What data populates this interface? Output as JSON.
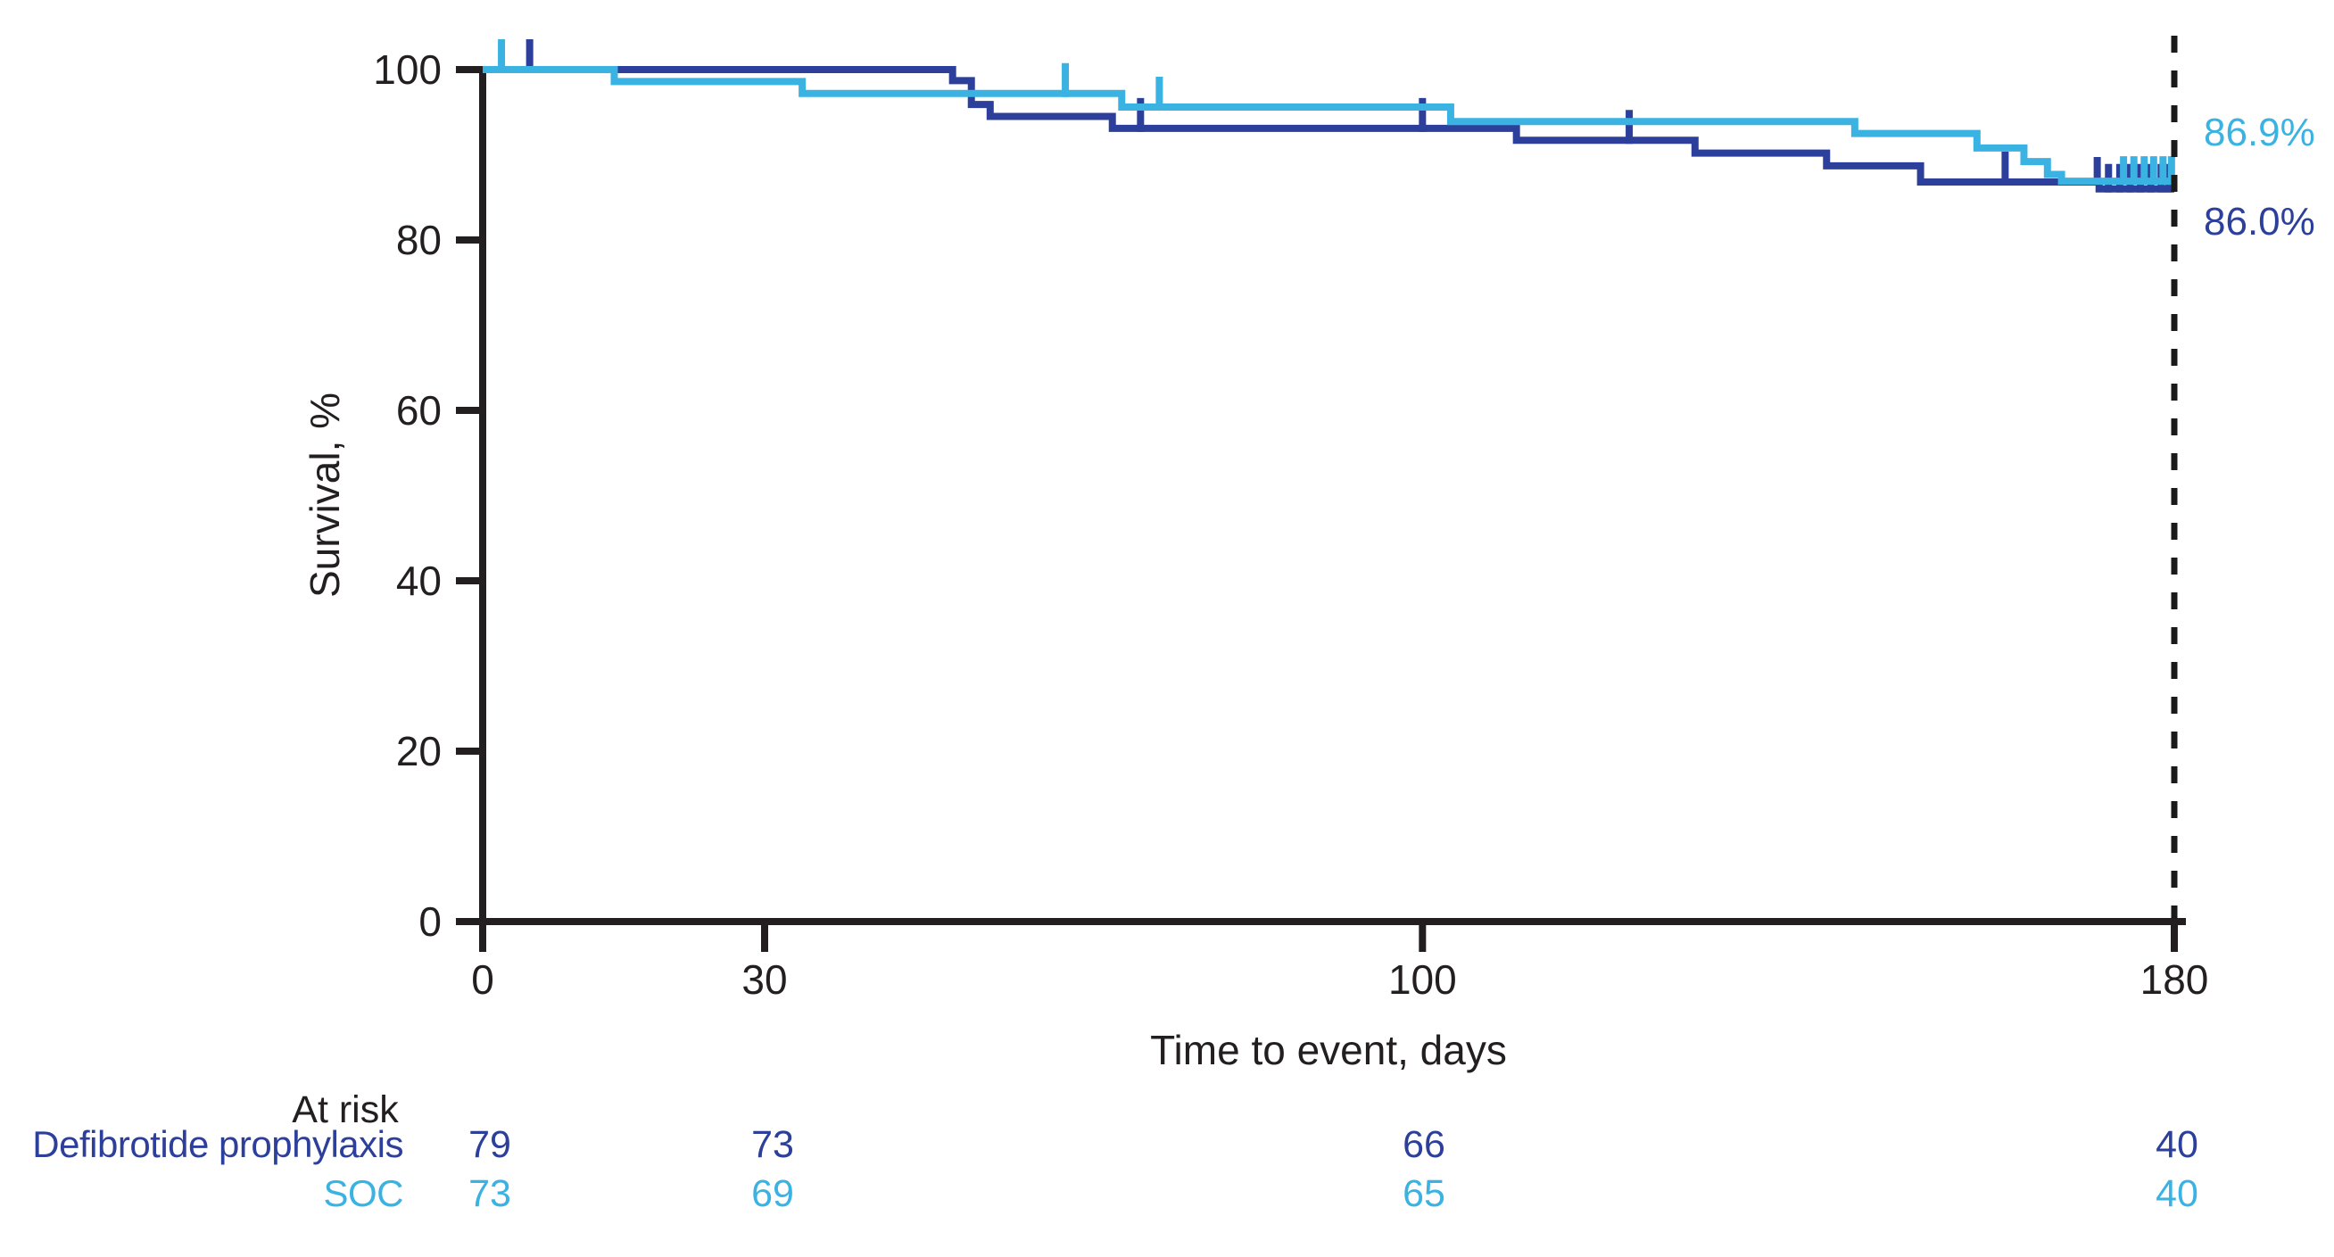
{
  "figure": {
    "background": "#ffffff",
    "y_axis_title": "Survival, %",
    "x_axis_title": "Time to event, days",
    "axis_color": "#231f20"
  },
  "chart_data": {
    "type": "line",
    "subtype": "kaplan_meier_step",
    "title": "",
    "xlabel": "Time to event, days",
    "ylabel": "Survival, %",
    "x_ticks": [
      0,
      30,
      100,
      180
    ],
    "y_ticks": [
      0,
      20,
      40,
      60,
      80,
      100
    ],
    "xlim": [
      0,
      180
    ],
    "ylim": [
      0,
      100
    ],
    "grid": false,
    "reference_line": {
      "x": 180,
      "style": "dashed",
      "color": "#1a1a1a"
    },
    "series": [
      {
        "name": "Defibrotide prophylaxis",
        "color": "#2C3F9B",
        "start_value": 100,
        "steps": [
          [
            50,
            98.7
          ],
          [
            52,
            95.9
          ],
          [
            54,
            94.5
          ],
          [
            67,
            93.1
          ],
          [
            110,
            91.7
          ],
          [
            129,
            90.2
          ],
          [
            143,
            88.7
          ],
          [
            153,
            86.8
          ],
          [
            172,
            86.0
          ]
        ],
        "censor_days": [
          5,
          70,
          100,
          122,
          162,
          171.8,
          173,
          174.2,
          175.3,
          176.4,
          177.5,
          178.6,
          179.4
        ],
        "final_value": 86.0,
        "final_label": "86.0%"
      },
      {
        "name": "SOC",
        "color": "#3AB2E2",
        "start_value": 100,
        "steps": [
          [
            14,
            98.6
          ],
          [
            34,
            97.2
          ],
          [
            68,
            95.6
          ],
          [
            103,
            93.9
          ],
          [
            146,
            92.5
          ],
          [
            159,
            90.8
          ],
          [
            164,
            89.2
          ],
          [
            166.5,
            87.7
          ],
          [
            168,
            86.9
          ]
        ],
        "censor_days": [
          2,
          62,
          72,
          174.6,
          175.7,
          176.8,
          177.8,
          178.8,
          179.7
        ],
        "final_value": 86.9,
        "final_label": "86.9%"
      }
    ]
  },
  "at_risk": {
    "header": "At risk",
    "time_points": [
      0,
      30,
      100,
      180
    ],
    "rows": [
      {
        "label": "Defibrotide prophylaxis",
        "counts": [
          "79",
          "73",
          "66",
          "40"
        ]
      },
      {
        "label": "SOC",
        "counts": [
          "73",
          "69",
          "65",
          "40"
        ]
      }
    ]
  }
}
